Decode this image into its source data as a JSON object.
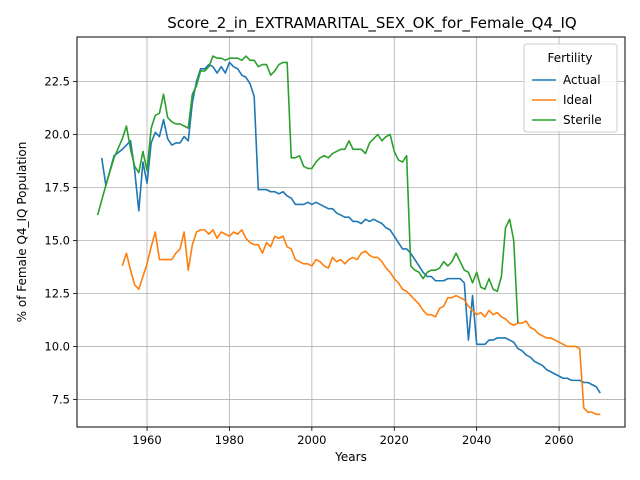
{
  "chart_data": {
    "type": "line",
    "title": "Score_2_in_EXTRAMARITAL_SEX_OK_for_Female_Q4_IQ",
    "xlabel": "Years",
    "ylabel": "% of Female Q4_IQ Population",
    "xlim": [
      1943,
      2076
    ],
    "ylim": [
      6.2,
      24.6
    ],
    "xticks": [
      1960,
      1980,
      2000,
      2020,
      2040,
      2060
    ],
    "yticks": [
      7.5,
      10.0,
      12.5,
      15.0,
      17.5,
      20.0,
      22.5
    ],
    "xtick_labels": [
      "1960",
      "1980",
      "2000",
      "2020",
      "2040",
      "2060"
    ],
    "ytick_labels": [
      "7.5",
      "10.0",
      "12.5",
      "15.0",
      "17.5",
      "20.0",
      "22.5"
    ],
    "grid": true,
    "legend": {
      "title": "Fertility",
      "placement": "top-right"
    },
    "series": [
      {
        "name": "Actual",
        "color": "#1f77b4",
        "x": [
          1949,
          1950,
          1952,
          1954,
          1956,
          1957,
          1958,
          1959,
          1960,
          1961,
          1962,
          1963,
          1964,
          1965,
          1966,
          1967,
          1968,
          1969,
          1970,
          1971,
          1972,
          1973,
          1974,
          1975,
          1976,
          1977,
          1978,
          1979,
          1980,
          1981,
          1982,
          1983,
          1984,
          1985,
          1986,
          1987,
          1988,
          1989,
          1990,
          1991,
          1992,
          1993,
          1994,
          1995,
          1996,
          1997,
          1998,
          1999,
          2000,
          2001,
          2002,
          2003,
          2004,
          2005,
          2006,
          2007,
          2008,
          2009,
          2010,
          2011,
          2012,
          2013,
          2014,
          2015,
          2016,
          2017,
          2018,
          2019,
          2020,
          2021,
          2022,
          2023,
          2024,
          2025,
          2026,
          2027,
          2028,
          2029,
          2030,
          2031,
          2032,
          2033,
          2034,
          2035,
          2036,
          2037,
          2038,
          2039,
          2040,
          2041,
          2042,
          2043,
          2044,
          2045,
          2046,
          2047,
          2048,
          2049,
          2050,
          2051,
          2052,
          2053,
          2054,
          2055,
          2056,
          2057,
          2058,
          2059,
          2060,
          2061,
          2062,
          2063,
          2064,
          2065,
          2066,
          2067,
          2068,
          2069,
          2070
        ],
        "y": [
          18.9,
          17.6,
          19.0,
          19.3,
          19.7,
          18.3,
          16.4,
          18.7,
          17.7,
          19.6,
          20.1,
          19.9,
          20.7,
          19.8,
          19.5,
          19.6,
          19.6,
          19.9,
          19.7,
          21.5,
          22.5,
          23.1,
          23.1,
          23.3,
          23.2,
          22.9,
          23.2,
          22.9,
          23.4,
          23.2,
          23.1,
          22.8,
          22.7,
          22.4,
          21.8,
          17.4,
          17.4,
          17.4,
          17.3,
          17.3,
          17.2,
          17.3,
          17.1,
          17.0,
          16.7,
          16.7,
          16.7,
          16.8,
          16.7,
          16.8,
          16.7,
          16.6,
          16.5,
          16.5,
          16.3,
          16.2,
          16.1,
          16.1,
          15.9,
          15.9,
          15.8,
          16.0,
          15.9,
          16.0,
          15.9,
          15.8,
          15.6,
          15.5,
          15.2,
          14.9,
          14.6,
          14.6,
          14.4,
          14.1,
          13.8,
          13.5,
          13.3,
          13.3,
          13.1,
          13.1,
          13.1,
          13.2,
          13.2,
          13.2,
          13.2,
          13.0,
          10.3,
          12.4,
          10.1,
          10.1,
          10.1,
          10.3,
          10.3,
          10.4,
          10.4,
          10.4,
          10.3,
          10.2,
          9.9,
          9.8,
          9.6,
          9.5,
          9.3,
          9.2,
          9.1,
          8.9,
          8.8,
          8.7,
          8.6,
          8.5,
          8.5,
          8.4,
          8.4,
          8.4,
          8.3,
          8.3,
          8.2,
          8.1,
          7.8
        ]
      },
      {
        "name": "Ideal",
        "color": "#ff7f0e",
        "x": [
          1954,
          1955,
          1956,
          1957,
          1958,
          1959,
          1960,
          1961,
          1962,
          1963,
          1964,
          1965,
          1966,
          1967,
          1968,
          1969,
          1970,
          1971,
          1972,
          1973,
          1974,
          1975,
          1976,
          1977,
          1978,
          1979,
          1980,
          1981,
          1982,
          1983,
          1984,
          1985,
          1986,
          1987,
          1988,
          1989,
          1990,
          1991,
          1992,
          1993,
          1994,
          1995,
          1996,
          1997,
          1998,
          1999,
          2000,
          2001,
          2002,
          2003,
          2004,
          2005,
          2006,
          2007,
          2008,
          2009,
          2010,
          2011,
          2012,
          2013,
          2014,
          2015,
          2016,
          2017,
          2018,
          2019,
          2020,
          2021,
          2022,
          2023,
          2024,
          2025,
          2026,
          2027,
          2028,
          2029,
          2030,
          2031,
          2032,
          2033,
          2034,
          2035,
          2036,
          2037,
          2038,
          2039,
          2040,
          2041,
          2042,
          2043,
          2044,
          2045,
          2046,
          2047,
          2048,
          2049,
          2050,
          2051,
          2052,
          2053,
          2054,
          2055,
          2056,
          2057,
          2058,
          2059,
          2060,
          2061,
          2062,
          2063,
          2064,
          2065,
          2066,
          2067,
          2068,
          2069,
          2070
        ],
        "y": [
          13.8,
          14.4,
          13.6,
          12.9,
          12.7,
          13.3,
          13.9,
          14.7,
          15.4,
          14.1,
          14.1,
          14.1,
          14.1,
          14.4,
          14.6,
          15.4,
          13.6,
          14.8,
          15.4,
          15.5,
          15.5,
          15.3,
          15.5,
          15.1,
          15.4,
          15.3,
          15.2,
          15.4,
          15.3,
          15.5,
          15.1,
          14.9,
          14.8,
          14.8,
          14.4,
          14.9,
          14.7,
          15.2,
          15.1,
          15.2,
          14.7,
          14.6,
          14.1,
          14.0,
          13.9,
          13.9,
          13.8,
          14.1,
          14.0,
          13.8,
          13.7,
          14.2,
          14.0,
          14.1,
          13.9,
          14.1,
          14.2,
          14.1,
          14.4,
          14.5,
          14.3,
          14.2,
          14.2,
          14.0,
          13.7,
          13.5,
          13.2,
          13.0,
          12.7,
          12.6,
          12.4,
          12.2,
          12.0,
          11.7,
          11.5,
          11.5,
          11.4,
          11.8,
          11.9,
          12.3,
          12.3,
          12.4,
          12.3,
          12.2,
          11.9,
          11.7,
          11.5,
          11.6,
          11.4,
          11.7,
          11.5,
          11.6,
          11.4,
          11.3,
          11.1,
          11.0,
          11.1,
          11.1,
          11.2,
          10.9,
          10.8,
          10.6,
          10.5,
          10.4,
          10.4,
          10.3,
          10.2,
          10.1,
          10.0,
          10.0,
          10.0,
          9.9,
          7.1,
          6.9,
          6.9,
          6.8,
          6.8
        ]
      },
      {
        "name": "Sterile",
        "color": "#2ca02c",
        "x": [
          1948,
          1950,
          1952,
          1954,
          1955,
          1956,
          1957,
          1958,
          1959,
          1960,
          1961,
          1962,
          1963,
          1964,
          1965,
          1966,
          1967,
          1968,
          1969,
          1970,
          1971,
          1972,
          1973,
          1974,
          1975,
          1976,
          1977,
          1978,
          1979,
          1980,
          1981,
          1982,
          1983,
          1984,
          1985,
          1986,
          1987,
          1988,
          1989,
          1990,
          1991,
          1992,
          1993,
          1994,
          1995,
          1996,
          1997,
          1998,
          1999,
          2000,
          2001,
          2002,
          2003,
          2004,
          2005,
          2006,
          2007,
          2008,
          2009,
          2010,
          2011,
          2012,
          2013,
          2014,
          2015,
          2016,
          2017,
          2018,
          2019,
          2020,
          2021,
          2022,
          2023,
          2024,
          2025,
          2026,
          2027,
          2028,
          2029,
          2030,
          2031,
          2032,
          2033,
          2034,
          2035,
          2036,
          2037,
          2038,
          2039,
          2040,
          2041,
          2042,
          2043,
          2044,
          2045,
          2046,
          2047,
          2048,
          2049,
          2050
        ],
        "y": [
          16.2,
          17.6,
          18.9,
          19.8,
          20.4,
          19.3,
          18.5,
          18.2,
          19.2,
          18.3,
          20.3,
          20.9,
          21.0,
          21.9,
          20.8,
          20.6,
          20.5,
          20.5,
          20.4,
          20.3,
          21.9,
          22.3,
          23.0,
          23.0,
          23.2,
          23.7,
          23.6,
          23.6,
          23.5,
          23.6,
          23.6,
          23.6,
          23.5,
          23.7,
          23.5,
          23.5,
          23.2,
          23.3,
          23.3,
          22.8,
          23.0,
          23.3,
          23.4,
          23.4,
          18.9,
          18.9,
          19.0,
          18.5,
          18.4,
          18.4,
          18.7,
          18.9,
          19.0,
          18.9,
          19.1,
          19.2,
          19.3,
          19.3,
          19.7,
          19.3,
          19.3,
          19.3,
          19.1,
          19.6,
          19.8,
          20.0,
          19.7,
          19.9,
          20.0,
          19.2,
          18.8,
          18.7,
          19.0,
          13.8,
          13.6,
          13.5,
          13.2,
          13.5,
          13.6,
          13.6,
          13.7,
          14.0,
          13.8,
          14.0,
          14.4,
          14.0,
          13.6,
          13.5,
          13.0,
          13.5,
          12.8,
          12.7,
          13.2,
          12.7,
          12.6,
          13.3,
          15.6,
          16.0,
          15.0,
          11.1
        ]
      }
    ]
  }
}
